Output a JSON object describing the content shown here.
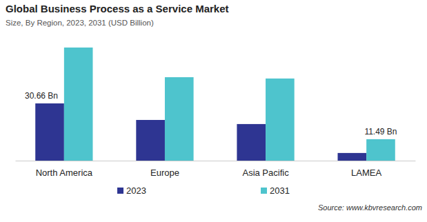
{
  "chart_data": {
    "type": "bar",
    "title": "Global Business Process as a Service Market",
    "subtitle": "Size, By Region, 2023, 2031 (USD Billion)",
    "categories": [
      "North America",
      "Europe",
      "Asia Pacific",
      "LAMEA"
    ],
    "series": [
      {
        "name": "2023",
        "color": "#2e3592",
        "values": [
          30.66,
          21.8,
          19.6,
          4.1
        ],
        "data_labels": true,
        "value_labels": [
          "30.66 Bn",
          null,
          null,
          null
        ]
      },
      {
        "name": "2031",
        "color": "#4ec4cd",
        "values": [
          60.6,
          44.7,
          44.0,
          11.49
        ],
        "data_labels": true,
        "value_labels": [
          null,
          null,
          null,
          "11.49 Bn"
        ]
      }
    ],
    "ylim": [
      0,
      65
    ],
    "tick_labels": "x",
    "grid": false,
    "legend": "bottom",
    "source": "Source: www.kbvresearch.com"
  }
}
